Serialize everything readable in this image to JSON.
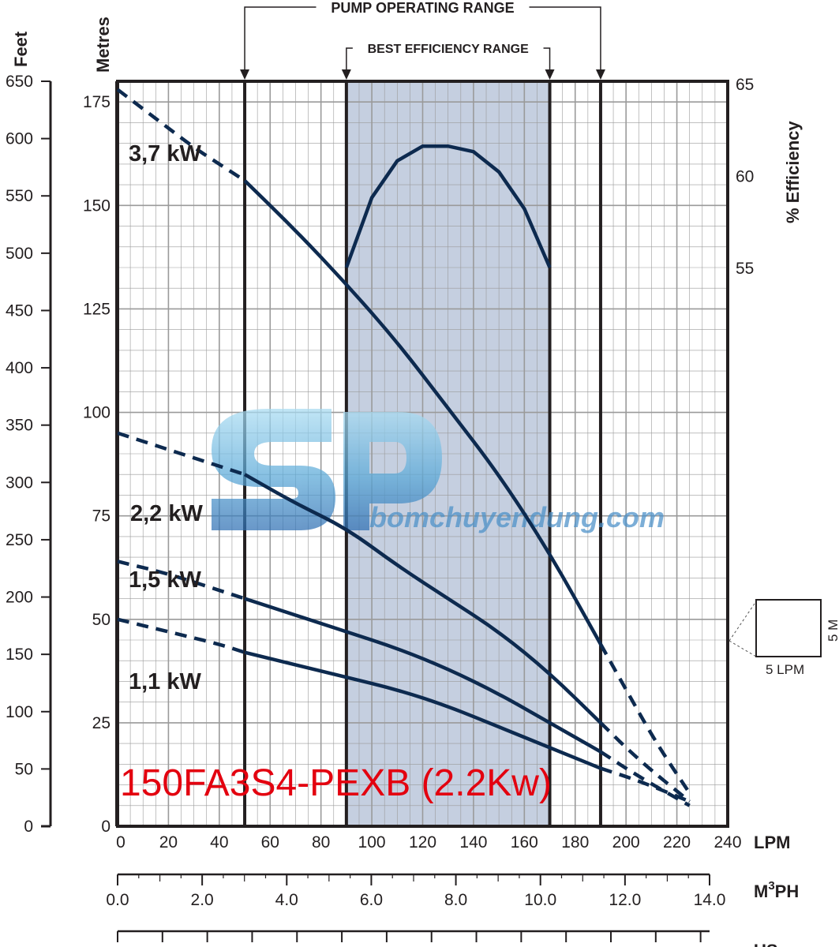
{
  "chart_data": {
    "type": "line",
    "title": "",
    "model_label": "150FA3S4-PEXB (2.2Kw)",
    "x_axis": {
      "unit": "LPM",
      "min": 0,
      "max": 240,
      "ticks": [
        0,
        20,
        40,
        60,
        80,
        100,
        120,
        140,
        160,
        180,
        200,
        220,
        240
      ]
    },
    "x2_axis": {
      "unit": "M³PH",
      "unit_base": "M",
      "unit_sup": "3",
      "unit_tail": "PH",
      "ticks": [
        "0.0",
        "2.0",
        "4.0",
        "6.0",
        "8.0",
        "10.0",
        "12.0",
        "14.0"
      ],
      "values": [
        0,
        2,
        4,
        6,
        8,
        10,
        12,
        14
      ]
    },
    "x3_axis": {
      "unit": "US gpm"
    },
    "y_axis": {
      "unit": "Metres",
      "min": 0,
      "max": 180,
      "ticks": [
        0,
        25,
        50,
        75,
        100,
        125,
        150,
        175
      ]
    },
    "y2_axis": {
      "unit": "Feet",
      "min": 0,
      "max": 650,
      "ticks": [
        0,
        50,
        100,
        150,
        200,
        250,
        300,
        350,
        400,
        450,
        500,
        550,
        600,
        650
      ]
    },
    "y3_axis": {
      "unit": "% Efficiency",
      "ticks": [
        55,
        60,
        65
      ]
    },
    "pump_operating_range": {
      "label": "PUMP OPERATING RANGE",
      "from": 50,
      "to": 190
    },
    "best_efficiency_range": {
      "label": "BEST EFFICIENCY RANGE",
      "from": 90,
      "to": 170
    },
    "scale_legend": {
      "x": "5 LPM",
      "y": "5 M"
    },
    "series": [
      {
        "name": "3,7 kW",
        "dashed": [
          [
            0,
            178
          ],
          [
            15,
            171
          ],
          [
            30,
            164
          ],
          [
            40,
            160
          ],
          [
            50,
            156
          ]
        ],
        "solid": [
          [
            50,
            156
          ],
          [
            70,
            144
          ],
          [
            90,
            131
          ],
          [
            110,
            117
          ],
          [
            130,
            101
          ],
          [
            150,
            85
          ],
          [
            170,
            66
          ],
          [
            190,
            44
          ]
        ],
        "dashed_end": [
          [
            190,
            44
          ],
          [
            200,
            33
          ],
          [
            212,
            20
          ],
          [
            225,
            8
          ]
        ]
      },
      {
        "name": "2,2 kW",
        "dashed": [
          [
            0,
            95
          ],
          [
            20,
            91
          ],
          [
            40,
            87
          ],
          [
            50,
            85
          ]
        ],
        "solid": [
          [
            50,
            85
          ],
          [
            70,
            78
          ],
          [
            90,
            72
          ],
          [
            110,
            63
          ],
          [
            130,
            55
          ],
          [
            150,
            47
          ],
          [
            170,
            37
          ],
          [
            190,
            25
          ]
        ],
        "dashed_end": [
          [
            190,
            25
          ],
          [
            205,
            16
          ],
          [
            225,
            6
          ]
        ]
      },
      {
        "name": "1,5 kW",
        "dashed": [
          [
            0,
            64
          ],
          [
            20,
            61
          ],
          [
            40,
            57
          ],
          [
            50,
            55
          ]
        ],
        "solid": [
          [
            50,
            55
          ],
          [
            70,
            51
          ],
          [
            90,
            47
          ],
          [
            110,
            43
          ],
          [
            130,
            38
          ],
          [
            150,
            32
          ],
          [
            170,
            25
          ],
          [
            190,
            18
          ]
        ],
        "dashed_end": [
          [
            190,
            18
          ],
          [
            205,
            12
          ],
          [
            225,
            5
          ]
        ]
      },
      {
        "name": "1,1 kW",
        "dashed": [
          [
            0,
            50
          ],
          [
            20,
            47
          ],
          [
            40,
            44
          ],
          [
            50,
            42
          ]
        ],
        "solid": [
          [
            50,
            42
          ],
          [
            70,
            39
          ],
          [
            90,
            36
          ],
          [
            110,
            33
          ],
          [
            130,
            29
          ],
          [
            150,
            24
          ],
          [
            170,
            19
          ],
          [
            190,
            14
          ]
        ],
        "dashed_end": [
          [
            190,
            14
          ],
          [
            205,
            11
          ],
          [
            225,
            6
          ]
        ]
      }
    ],
    "efficiency_curve": {
      "name": "% Efficiency",
      "points": [
        [
          90,
          55
        ],
        [
          100,
          58.8
        ],
        [
          110,
          60.8
        ],
        [
          120,
          61.6
        ],
        [
          130,
          61.6
        ],
        [
          140,
          61.3
        ],
        [
          150,
          60.2
        ],
        [
          160,
          58.2
        ],
        [
          170,
          55
        ]
      ]
    },
    "grid": true
  },
  "watermark": {
    "logo_text": "SP",
    "site_text": "bomchuyendung.com"
  },
  "colors": {
    "curve": "#0d2a4f",
    "band": "#c5cfe0",
    "grid": "#9a9a9a",
    "model": "#e3000f"
  }
}
